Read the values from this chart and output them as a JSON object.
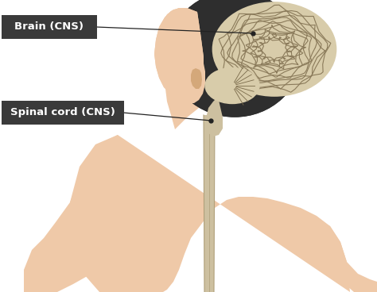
{
  "background_color": "#ffffff",
  "skin_color": "#efc9a8",
  "skin_shadow": "#d4a87a",
  "hair_color": "#2e2e2e",
  "brain_fill": "#d8ccaa",
  "brain_outline": "#7a6a4a",
  "brain_fold_color": "#8a7a5a",
  "spinal_cord_color": "#cdc0a0",
  "spinal_cord_edge": "#b0a07a",
  "label_bg_color": "#3a3a3a",
  "label_text_color": "#ffffff",
  "line_color": "#222222",
  "label1_text": "Brain (CNS)",
  "label2_text": "Spinal cord (CNS)",
  "figsize": [
    4.74,
    3.68
  ],
  "dpi": 100
}
